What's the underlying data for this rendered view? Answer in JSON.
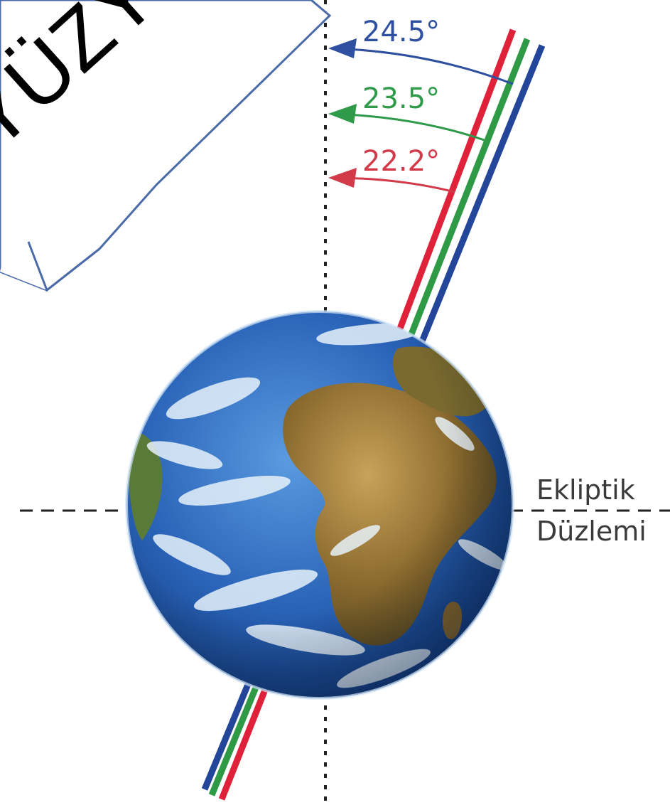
{
  "callout": {
    "text": ".YÜZYIL",
    "border_color": "#4a6aa8"
  },
  "angles": [
    {
      "label": "24.5°",
      "color": "#2f4fa0"
    },
    {
      "label": "23.5°",
      "color": "#2f9a4a"
    },
    {
      "label": "22.2°",
      "color": "#d23a4a"
    }
  ],
  "plane": {
    "line1": "Ekliptik",
    "line2": "Düzlemi"
  },
  "colors": {
    "axis_red": "#e0213a",
    "axis_green": "#2e9a46",
    "axis_blue": "#23459a",
    "ocean": "#2f6bc0",
    "land": "#9a7a3a",
    "cloud": "#e8f2fb"
  }
}
